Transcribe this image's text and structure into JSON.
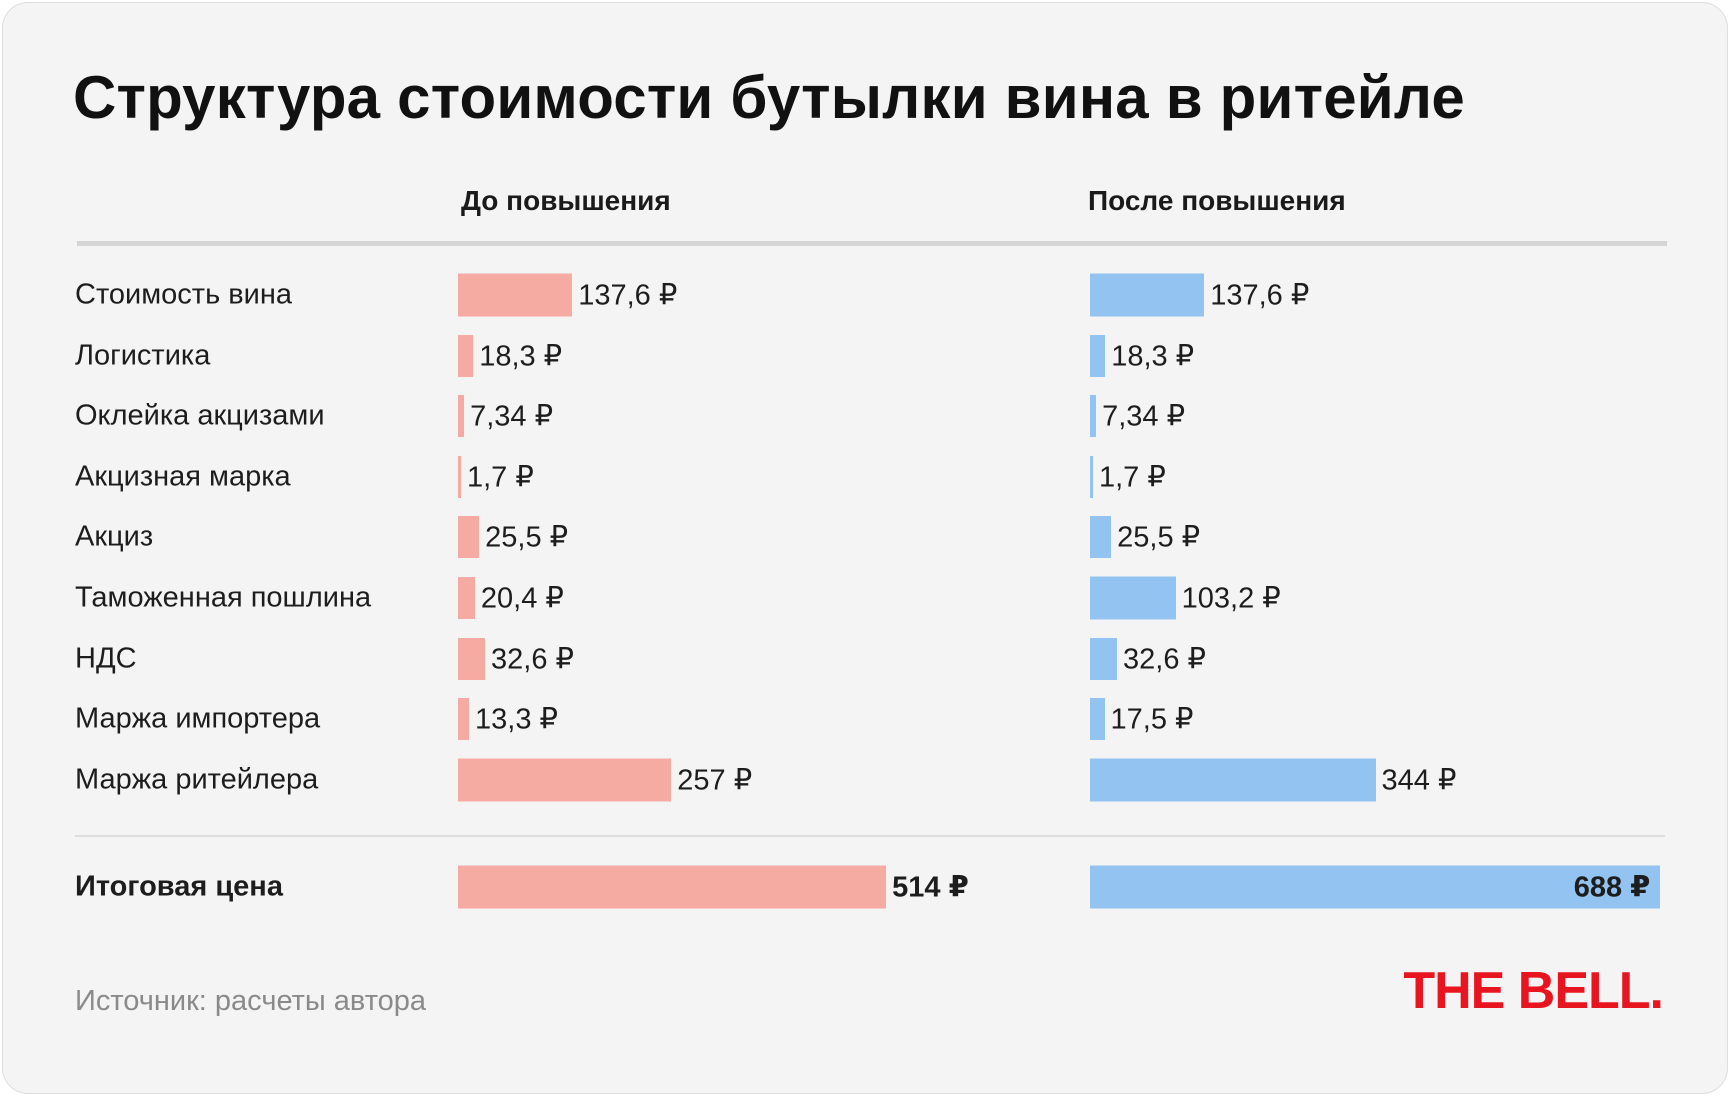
{
  "chart_data": {
    "type": "bar",
    "orientation": "horizontal",
    "title": "Структура стоимости бутылки вина в ритейле",
    "categories": [
      "Стоимость вина",
      "Логистика",
      "Оклейка акцизами",
      "Акцизная марка",
      "Акциз",
      "Таможенная пошлина",
      "НДС",
      "Маржа импортера",
      "Маржа ритейлера"
    ],
    "series": [
      {
        "name": "До повышения",
        "color": "#f5aaa2",
        "values": [
          137.6,
          18.3,
          7.34,
          1.7,
          25.5,
          20.4,
          32.6,
          13.3,
          257
        ],
        "labels": [
          "137,6 ₽",
          "18,3 ₽",
          "7,34 ₽",
          "1,7 ₽",
          "25,5 ₽",
          "20,4 ₽",
          "32,6 ₽",
          "13,3 ₽",
          "257 ₽"
        ]
      },
      {
        "name": "После повышения",
        "color": "#93c3f0",
        "values": [
          137.6,
          18.3,
          7.34,
          1.7,
          25.5,
          103.2,
          32.6,
          17.5,
          344
        ],
        "labels": [
          "137,6 ₽",
          "18,3 ₽",
          "7,34 ₽",
          "1,7 ₽",
          "25,5 ₽",
          "103,2 ₽",
          "32,6 ₽",
          "17,5 ₽",
          "344 ₽"
        ]
      }
    ],
    "total": {
      "label": "Итоговая цена",
      "values": [
        514,
        688
      ],
      "labels": [
        "514 ₽",
        "688 ₽"
      ]
    },
    "source": "Источник: расчеты автора",
    "logo": "THE BELL."
  }
}
